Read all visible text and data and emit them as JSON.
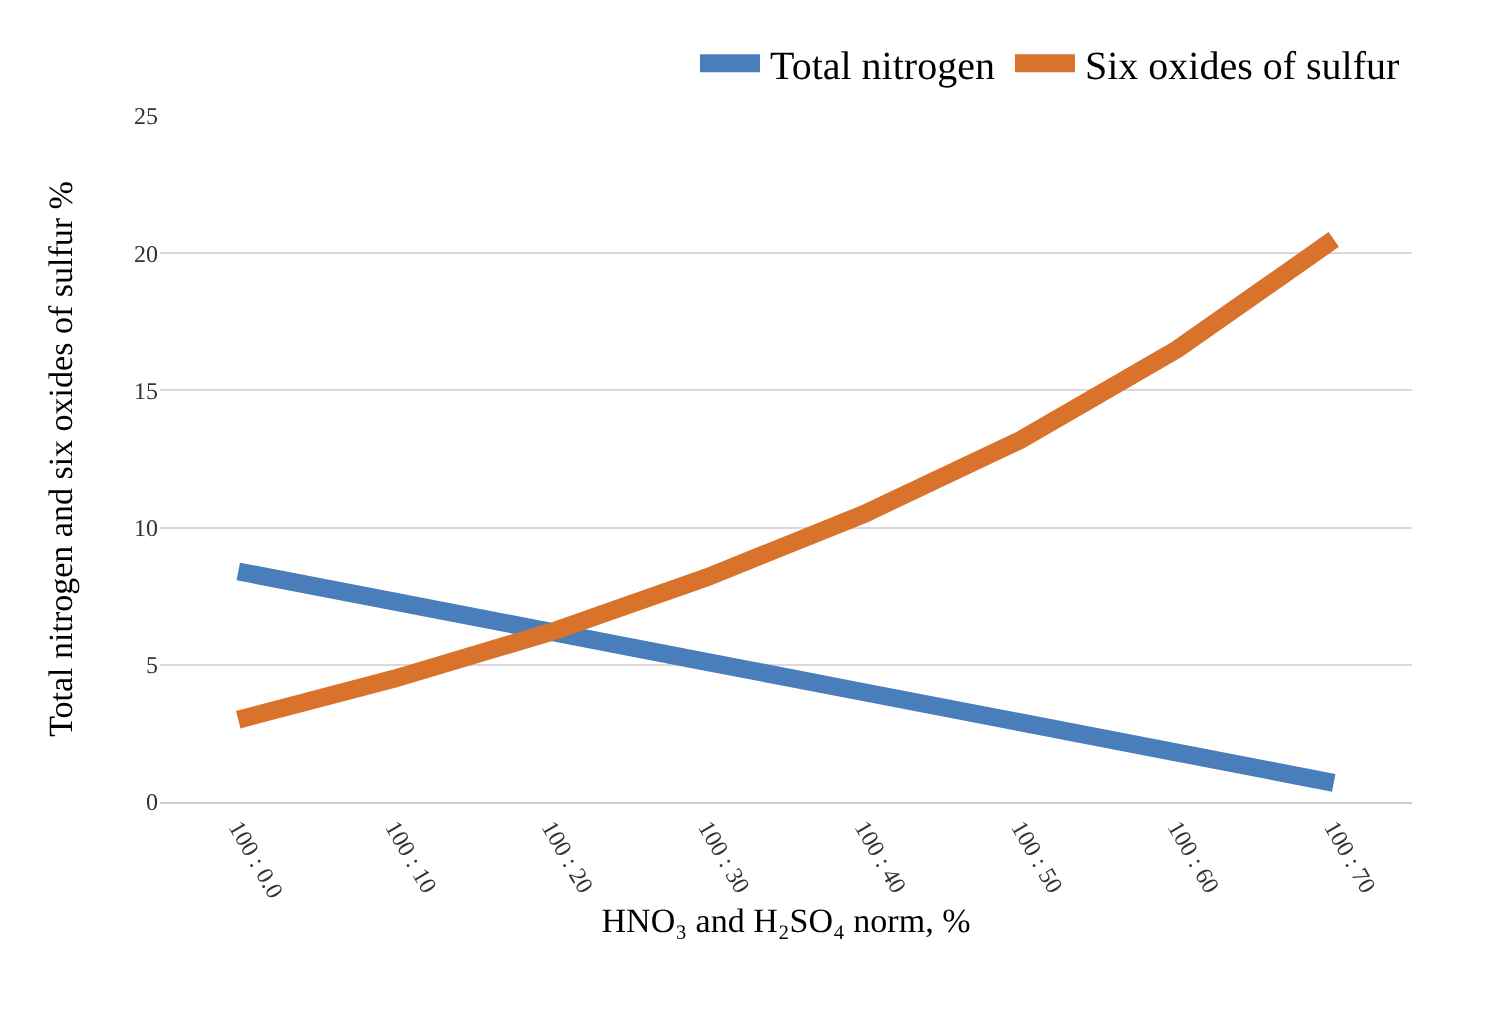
{
  "chart_data": {
    "type": "line",
    "xlabel": "HNO₃ and H₂SO₄ norm, %",
    "ylabel": "Total nitrogen and six oxides of sulfur %",
    "categories": [
      "100 : 0.0",
      "100 : 10",
      "100 : 20",
      "100 : 30",
      "100 : 40",
      "100 : 50",
      "100 : 60",
      "100 : 70"
    ],
    "series": [
      {
        "name": "Total nitrogen",
        "color": "#4a7ebb",
        "values": [
          8.4,
          7.3,
          6.2,
          5.1,
          4.0,
          2.9,
          1.8,
          0.7
        ]
      },
      {
        "name": "Six oxides of sulfur",
        "color": "#d9722b",
        "values": [
          3,
          4.5,
          6.2,
          8.2,
          10.5,
          13.2,
          16.5,
          20.5
        ]
      }
    ],
    "ylim": [
      0,
      25
    ],
    "yticks": [
      0,
      5,
      10,
      15,
      20,
      25
    ],
    "grid": "y",
    "legend": "top right",
    "marker": "none",
    "line_style": "solid"
  }
}
